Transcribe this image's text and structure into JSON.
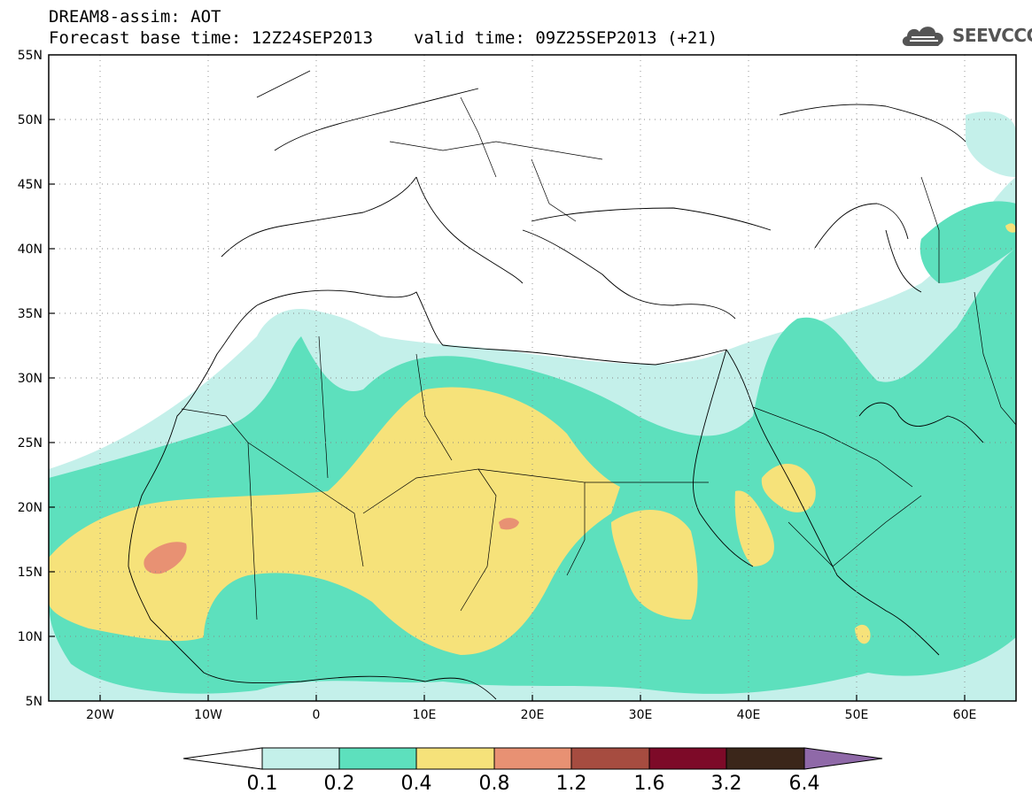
{
  "header": {
    "line1": "DREAM8-assim: AOT",
    "base_time": "Forecast base time: 12Z24SEP2013",
    "valid_time": "valid time: 09Z25SEP2013 (+21)"
  },
  "logo": {
    "text": "SEEVCCC",
    "icon": "cloud-icon"
  },
  "axes": {
    "lat_labels": [
      "55N",
      "50N",
      "45N",
      "40N",
      "35N",
      "30N",
      "25N",
      "20N",
      "15N",
      "10N",
      "5N"
    ],
    "lon_labels": [
      "20W",
      "10W",
      "0",
      "10E",
      "20E",
      "30E",
      "40E",
      "50E",
      "60E"
    ],
    "lat_range": [
      5,
      55
    ],
    "lon_range": [
      -25,
      65
    ],
    "grid": "dotted"
  },
  "colorbar": {
    "labels": [
      "0.1",
      "0.2",
      "0.4",
      "0.8",
      "1.2",
      "1.6",
      "3.2",
      "6.4"
    ],
    "colors": [
      "#ffffff",
      "#c4f0ea",
      "#5de0bd",
      "#f6e27a",
      "#e89173",
      "#a64c40",
      "#7d0a28",
      "#3b261a",
      "#8f69a8"
    ]
  }
}
